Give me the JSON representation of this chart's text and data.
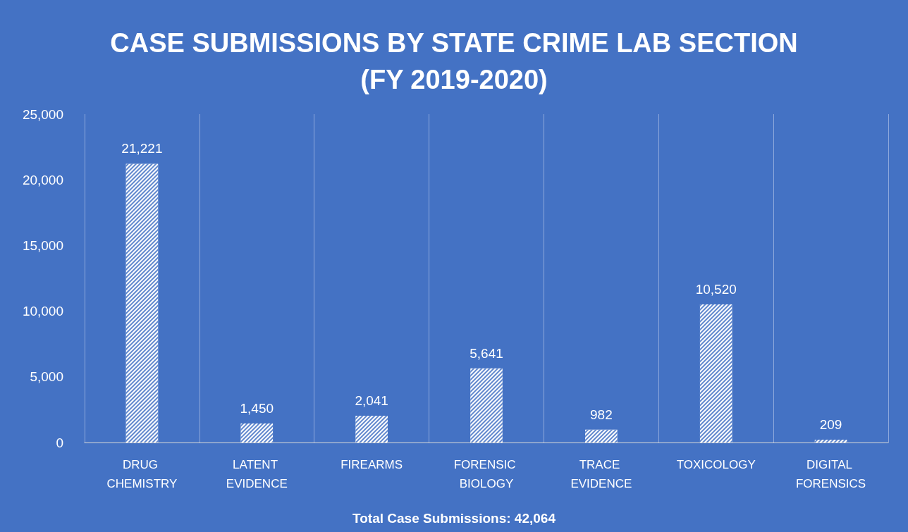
{
  "chart_data": {
    "type": "bar",
    "title": "CASE SUBMISSIONS BY STATE CRIME LAB SECTION\n(FY 2019-2020)",
    "categories": [
      "DRUG CHEMISTRY",
      "LATENT EVIDENCE",
      "FIREARMS",
      "FORENSIC BIOLOGY",
      "TRACE EVIDENCE",
      "TOXICOLOGY",
      "DIGITAL FORENSICS"
    ],
    "values": [
      21221,
      1450,
      2041,
      5641,
      982,
      10520,
      209
    ],
    "value_labels": [
      "21,221",
      "1,450",
      "2,041",
      "5,641",
      "982",
      "10,520",
      "209"
    ],
    "color": "#ffffff",
    "ylim": [
      0,
      25000
    ],
    "yticks": [
      0,
      {
        "value": 5000,
        "label": "5,000"
      },
      {
        "value": 10000,
        "label": "10,000"
      },
      {
        "value": 15000,
        "label": "15,000"
      },
      {
        "value": 20000,
        "label": "20,000"
      },
      {
        "value": 25000,
        "label": "25,000"
      }
    ],
    "grid": "x",
    "annotations": [
      "Total Case Submissions: 42,064"
    ]
  }
}
